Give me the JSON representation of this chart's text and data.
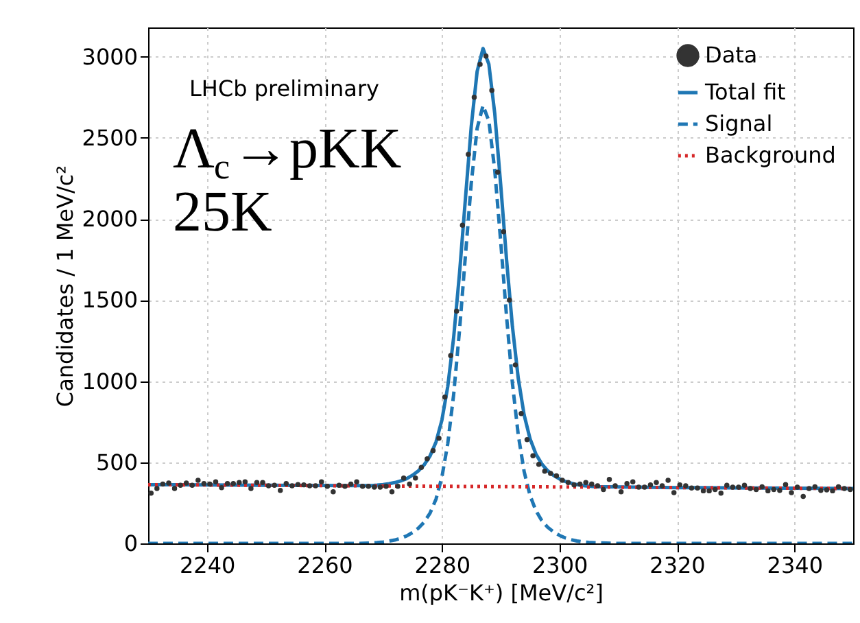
{
  "chart_data": {
    "type": "scatter",
    "xlabel": "m(pK⁻K⁺) [MeV/c²]",
    "ylabel": "Candidates / 1 MeV/c²",
    "annotations": [
      "LHCb preliminary",
      "Λ$_{c}$→pKK",
      "25K"
    ],
    "xlim": [
      2230,
      2350
    ],
    "xticks": [
      2240,
      2260,
      2280,
      2300,
      2320,
      2340
    ],
    "ylim": [
      0,
      3180
    ],
    "yticks": [
      0,
      500,
      1000,
      1500,
      2000,
      2500,
      3000
    ],
    "grid": true,
    "legend": "top right",
    "series": [
      {
        "name": "Data",
        "marker": "circle",
        "color": "#333333",
        "x": [
          2230.5,
          2231.5,
          2232.5,
          2233.5,
          2234.5,
          2235.5,
          2236.5,
          2237.5,
          2238.5,
          2239.5,
          2240.5,
          2241.5,
          2242.5,
          2243.5,
          2244.5,
          2245.5,
          2246.5,
          2247.5,
          2248.5,
          2249.5,
          2250.5,
          2251.5,
          2252.5,
          2253.5,
          2254.5,
          2255.5,
          2256.5,
          2257.5,
          2258.5,
          2259.5,
          2260.5,
          2261.5,
          2262.5,
          2263.5,
          2264.5,
          2265.5,
          2266.5,
          2267.5,
          2268.5,
          2269.5,
          2270.5,
          2271.5,
          2272.5,
          2273.5,
          2274.5,
          2275.5,
          2276.5,
          2277.5,
          2278.5,
          2279.5,
          2280.5,
          2281.5,
          2282.5,
          2283.5,
          2284.5,
          2285.5,
          2286.5,
          2287.5,
          2288.5,
          2289.5,
          2290.5,
          2291.5,
          2292.5,
          2293.5,
          2294.5,
          2295.5,
          2296.5,
          2297.5,
          2298.5,
          2299.5,
          2300.5,
          2301.5,
          2302.5,
          2303.5,
          2304.5,
          2305.5,
          2306.5,
          2307.5,
          2308.5,
          2309.5,
          2310.5,
          2311.5,
          2312.5,
          2313.5,
          2314.5,
          2315.5,
          2316.5,
          2317.5,
          2318.5,
          2319.5,
          2320.5,
          2321.5,
          2322.5,
          2323.5,
          2324.5,
          2325.5,
          2326.5,
          2327.5,
          2328.5,
          2329.5,
          2330.5,
          2331.5,
          2332.5,
          2333.5,
          2334.5,
          2335.5,
          2336.5,
          2337.5,
          2338.5,
          2339.5,
          2340.5,
          2341.5,
          2342.5,
          2343.5,
          2344.5,
          2345.5,
          2346.5,
          2347.5,
          2348.5,
          2349.5
        ],
        "values": [
          310,
          338,
          366,
          372,
          338,
          358,
          372,
          358,
          389,
          369,
          366,
          380,
          344,
          369,
          369,
          375,
          380,
          338,
          375,
          375,
          355,
          358,
          327,
          369,
          355,
          363,
          361,
          355,
          355,
          380,
          352,
          318,
          358,
          352,
          366,
          380,
          352,
          352,
          347,
          347,
          352,
          318,
          352,
          403,
          366,
          403,
          468,
          521,
          572,
          648,
          902,
          1158,
          1431,
          1961,
          2398,
          2750,
          2953,
          3003,
          2792,
          2288,
          1921,
          1500,
          1100,
          800,
          640,
          540,
          487,
          445,
          431,
          417,
          389,
          375,
          361,
          366,
          375,
          366,
          355,
          332,
          394,
          355,
          318,
          369,
          380,
          347,
          347,
          361,
          375,
          355,
          389,
          313,
          361,
          355,
          341,
          341,
          324,
          324,
          332,
          310,
          358,
          347,
          347,
          358,
          338,
          332,
          349,
          324,
          332,
          327,
          363,
          313,
          347,
          290,
          338,
          349,
          327,
          330,
          324,
          349,
          338,
          332
        ]
      },
      {
        "name": "Total fit",
        "type": "line",
        "line_style": "solid",
        "color": "#1f77b4",
        "x": [
          2230,
          2250,
          2268,
          2269,
          2270,
          2271,
          2272,
          2273,
          2274,
          2275,
          2276,
          2277,
          2278,
          2279,
          2280,
          2281,
          2282,
          2283,
          2284,
          2285,
          2286,
          2287,
          2288,
          2289,
          2290,
          2291,
          2292,
          2293,
          2294,
          2295,
          2296,
          2297,
          2298,
          2299,
          2300,
          2301,
          2302,
          2303,
          2304,
          2305,
          2306,
          2320,
          2350
        ],
        "values": [
          362,
          358,
          356,
          359,
          363,
          368,
          375,
          385,
          399,
          420,
          447,
          485,
          540,
          625,
          760,
          967,
          1268,
          1664,
          2122,
          2570,
          2909,
          3050,
          2953,
          2649,
          2215,
          1752,
          1339,
          1017,
          792,
          645,
          551,
          490,
          448,
          419,
          398,
          382,
          371,
          362,
          356,
          353,
          350,
          344,
          338
        ]
      },
      {
        "name": "Signal",
        "type": "line",
        "line_style": "dashed",
        "color": "#1f77b4",
        "x": [
          2230,
          2266,
          2269,
          2270,
          2271,
          2272,
          2273,
          2274,
          2275,
          2276,
          2277,
          2278,
          2279,
          2280,
          2281,
          2282,
          2283,
          2284,
          2285,
          2286,
          2287,
          2288,
          2289,
          2290,
          2291,
          2292,
          2293,
          2294,
          2295,
          2296,
          2297,
          2298,
          2299,
          2300,
          2301,
          2302,
          2303,
          2304,
          2305,
          2306,
          2310,
          2350
        ],
        "values": [
          0,
          0,
          5,
          9,
          14,
          21,
          32,
          46,
          67,
          94,
          132,
          188,
          273,
          408,
          615,
          916,
          1313,
          1771,
          2219,
          2558,
          2699,
          2603,
          2299,
          1865,
          1402,
          989,
          668,
          443,
          296,
          202,
          141,
          100,
          71,
          50,
          34,
          23,
          15,
          9,
          6,
          4,
          0,
          0
        ]
      },
      {
        "name": "Background",
        "type": "line",
        "line_style": "dotted",
        "color": "#d62728",
        "x": [
          2230,
          2350
        ],
        "values": [
          362,
          338
        ]
      }
    ]
  }
}
